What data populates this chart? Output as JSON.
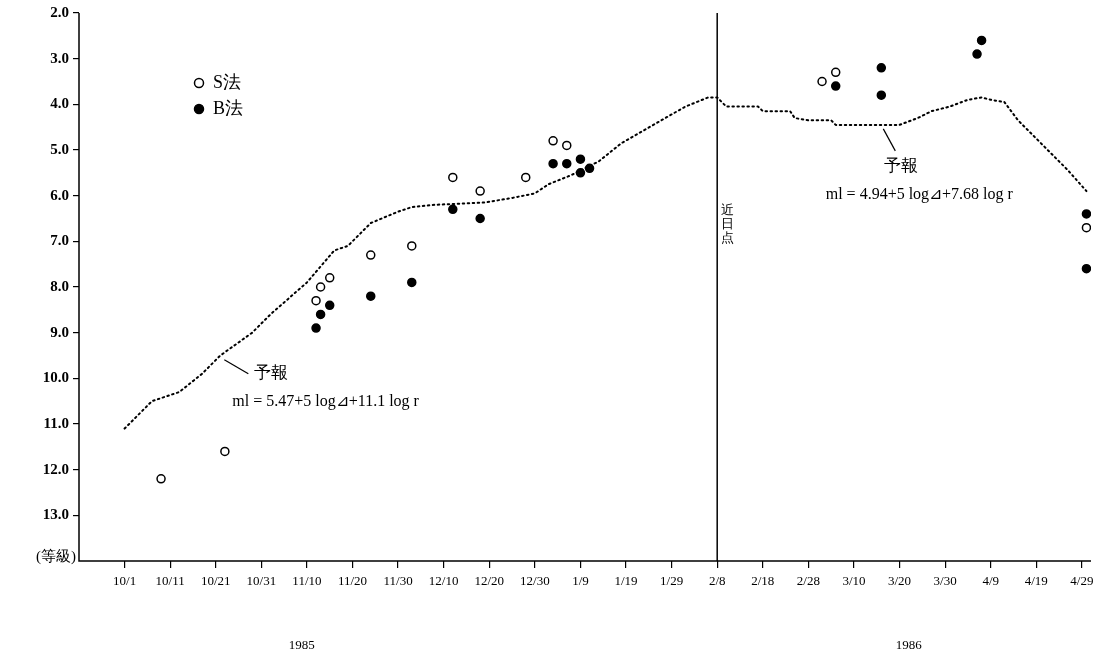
{
  "chart_data": {
    "type": "scatter",
    "ylabel": "(等級)",
    "xlim": [
      "1985-09-21",
      "1986-05-01"
    ],
    "xticks": [
      {
        "value": "1985-10-01",
        "label": "10/1"
      },
      {
        "value": "1985-10-11",
        "label": "10/11"
      },
      {
        "value": "1985-10-21",
        "label": "10/21"
      },
      {
        "value": "1985-10-31",
        "label": "10/31"
      },
      {
        "value": "1985-11-10",
        "label": "11/10"
      },
      {
        "value": "1985-11-20",
        "label": "11/20"
      },
      {
        "value": "1985-11-30",
        "label": "11/30"
      },
      {
        "value": "1985-12-10",
        "label": "12/10"
      },
      {
        "value": "1985-12-20",
        "label": "12/20"
      },
      {
        "value": "1985-12-30",
        "label": "12/30"
      },
      {
        "value": "1986-01-09",
        "label": "1/9"
      },
      {
        "value": "1986-01-19",
        "label": "1/19"
      },
      {
        "value": "1986-01-29",
        "label": "1/29"
      },
      {
        "value": "1986-02-08",
        "label": "2/8"
      },
      {
        "value": "1986-02-18",
        "label": "2/18"
      },
      {
        "value": "1986-02-28",
        "label": "2/28"
      },
      {
        "value": "1986-03-10",
        "label": "3/10"
      },
      {
        "value": "1986-03-20",
        "label": "3/20"
      },
      {
        "value": "1986-03-30",
        "label": "3/30"
      },
      {
        "value": "1986-04-09",
        "label": "4/9"
      },
      {
        "value": "1986-04-19",
        "label": "4/19"
      },
      {
        "value": "1986-04-29",
        "label": "4/29"
      }
    ],
    "ylim": [
      14,
      2
    ],
    "yticks": [
      {
        "value": 2,
        "label": "2.0"
      },
      {
        "value": 3,
        "label": "3.0"
      },
      {
        "value": 4,
        "label": "4.0"
      },
      {
        "value": 5,
        "label": "5.0"
      },
      {
        "value": 6,
        "label": "6.0"
      },
      {
        "value": 7,
        "label": "7.0"
      },
      {
        "value": 8,
        "label": "8.0"
      },
      {
        "value": 9,
        "label": "9.0"
      },
      {
        "value": 10,
        "label": "10.0"
      },
      {
        "value": 11,
        "label": "11.0"
      },
      {
        "value": 12,
        "label": "12.0"
      },
      {
        "value": 13,
        "label": "13.0"
      }
    ],
    "grid": false,
    "legend": "top left",
    "series": [
      {
        "type": "line",
        "color": "#000000",
        "marker": "none",
        "line_style": "dotted",
        "x": [
          "1985-10-01",
          "1985-10-07",
          "1985-10-13",
          "1985-10-18",
          "1985-10-22",
          "1985-10-29",
          "1985-11-02",
          "1985-11-10",
          "1985-11-16",
          "1985-11-19",
          "1985-11-24",
          "1985-11-30",
          "1985-12-03",
          "1985-12-08",
          "1985-12-19",
          "1985-12-25",
          "1985-12-30",
          "1986-01-02",
          "1986-01-07",
          "1986-01-13",
          "1986-01-18",
          "1986-01-25",
          "1986-02-01",
          "1986-02-06",
          "1986-02-08",
          "1986-02-10",
          "1986-02-17",
          "1986-02-18",
          "1986-02-24",
          "1986-02-25",
          "1986-02-28",
          "1986-03-05",
          "1986-03-06",
          "1986-03-20",
          "1986-03-24",
          "1986-03-27",
          "1986-03-31",
          "1986-04-04",
          "1986-04-07",
          "1986-04-09",
          "1986-04-12",
          "1986-04-15",
          "1986-04-21",
          "1986-04-26",
          "1986-04-30"
        ],
        "values": [
          11.1,
          10.5,
          10.3,
          9.9,
          9.5,
          9.0,
          8.6,
          7.9,
          7.2,
          7.1,
          6.6,
          6.35,
          6.25,
          6.2,
          6.15,
          6.05,
          5.95,
          5.75,
          5.55,
          5.25,
          4.85,
          4.45,
          4.05,
          3.85,
          3.85,
          4.05,
          4.05,
          4.15,
          4.15,
          4.3,
          4.35,
          4.35,
          4.45,
          4.45,
          4.3,
          4.15,
          4.05,
          3.9,
          3.85,
          3.9,
          3.95,
          4.35,
          4.95,
          5.45,
          5.9
        ]
      },
      {
        "type": "scatter",
        "name": "S法",
        "color": "#ffffff",
        "marker": "circle",
        "x": [
          "1985-10-09",
          "1985-10-23",
          "1985-11-12",
          "1985-11-13",
          "1985-11-15",
          "1985-11-24",
          "1985-12-03",
          "1985-12-12",
          "1985-12-18",
          "1985-12-28",
          "1986-01-03",
          "1986-01-06",
          "1986-03-03",
          "1986-03-06",
          "1986-04-30"
        ],
        "values": [
          12.2,
          11.6,
          8.3,
          8.0,
          7.8,
          7.3,
          7.1,
          5.6,
          5.9,
          5.6,
          4.8,
          4.9,
          3.5,
          3.3,
          6.7
        ]
      },
      {
        "type": "scatter",
        "name": "B法",
        "color": "#000000",
        "marker": "circle",
        "x": [
          "1985-11-12",
          "1985-11-13",
          "1985-11-15",
          "1985-11-24",
          "1985-12-03",
          "1985-12-12",
          "1985-12-18",
          "1986-01-03",
          "1986-01-06",
          "1986-01-09",
          "1986-01-09",
          "1986-01-11",
          "1986-03-06",
          "1986-03-16",
          "1986-03-16",
          "1986-04-06",
          "1986-04-07",
          "1986-04-30",
          "1986-04-30"
        ],
        "values": [
          8.9,
          8.6,
          8.4,
          8.2,
          7.9,
          6.3,
          6.5,
          5.3,
          5.3,
          5.2,
          5.5,
          5.4,
          3.6,
          3.2,
          3.8,
          2.9,
          2.6,
          6.4,
          7.6
        ]
      }
    ],
    "ref_lines": [
      {
        "axis": "x",
        "value": "1986-02-08",
        "label": "近日点"
      }
    ],
    "annotations": [
      {
        "text": "予報\nml = 5.47+5 log⊿+11.1 log r",
        "x": "1985-10-22",
        "y": 9.55
      },
      {
        "text": "予報\nml = 4.94+5 log⊿+7.68 log r",
        "x": "1986-03-16",
        "y": 4.45
      },
      "1985",
      "1986"
    ]
  }
}
